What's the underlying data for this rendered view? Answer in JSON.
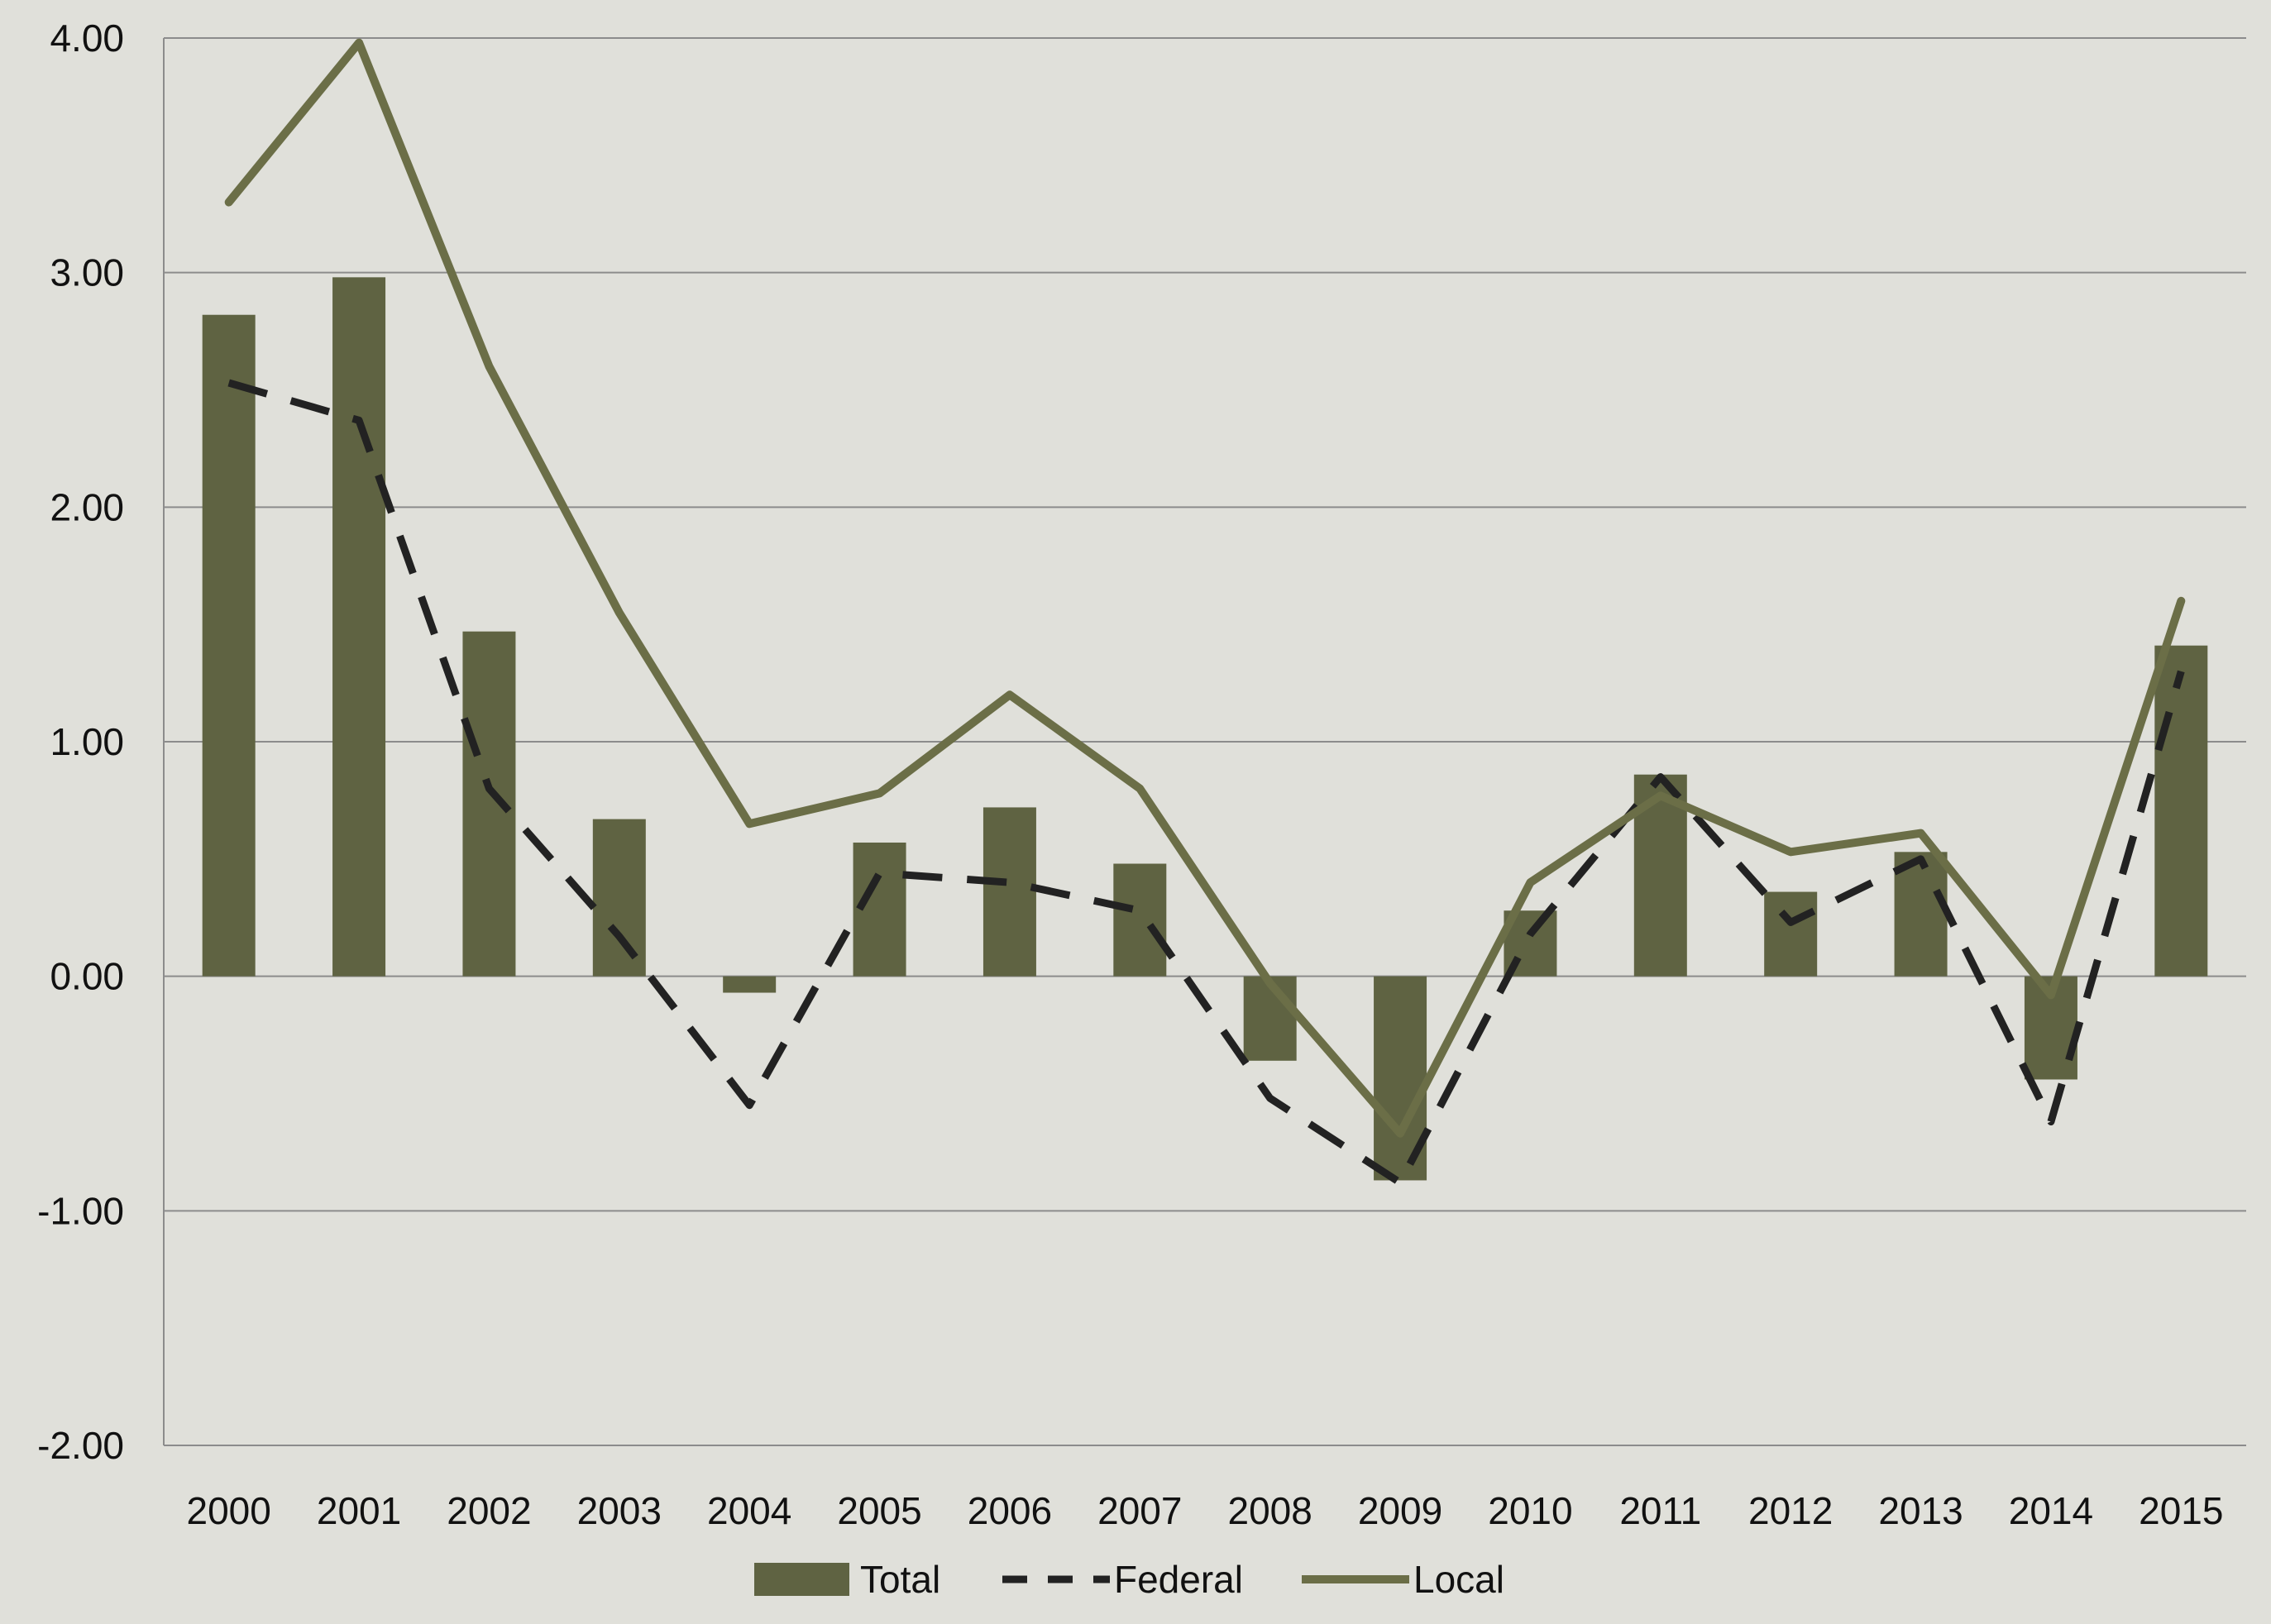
{
  "chart_data": {
    "type": "bar",
    "categories": [
      "2000",
      "2001",
      "2002",
      "2003",
      "2004",
      "2005",
      "2006",
      "2007",
      "2008",
      "2009",
      "2010",
      "2011",
      "2012",
      "2013",
      "2014",
      "2015"
    ],
    "series": [
      {
        "name": "Total",
        "type": "bar",
        "values": [
          2.82,
          2.98,
          1.47,
          0.67,
          -0.07,
          0.57,
          0.72,
          0.48,
          -0.36,
          -0.87,
          0.28,
          0.86,
          0.36,
          0.53,
          -0.44,
          1.41
        ]
      },
      {
        "name": "Federal",
        "type": "line",
        "dash": "dashed",
        "values": [
          2.53,
          2.37,
          0.8,
          0.17,
          -0.55,
          0.44,
          0.4,
          0.28,
          -0.52,
          -0.88,
          0.18,
          0.85,
          0.23,
          0.5,
          -0.62,
          1.3
        ]
      },
      {
        "name": "Local",
        "type": "line",
        "values": [
          3.3,
          3.98,
          2.6,
          1.55,
          0.65,
          0.78,
          1.2,
          0.8,
          -0.03,
          -0.67,
          0.4,
          0.77,
          0.53,
          0.61,
          -0.08,
          1.6
        ]
      }
    ],
    "yticks": [
      "4.00",
      "3.00",
      "2.00",
      "1.00",
      "0.00",
      "-1.00",
      "-2.00"
    ],
    "ylim": [
      -2,
      4
    ],
    "grid": true,
    "legend": "bottom-center",
    "colors": {
      "bar": "#5f6342",
      "federal": "#222222",
      "local": "#6b6e47",
      "grid": "#8c8c8c",
      "background": "#e0e0da"
    }
  }
}
